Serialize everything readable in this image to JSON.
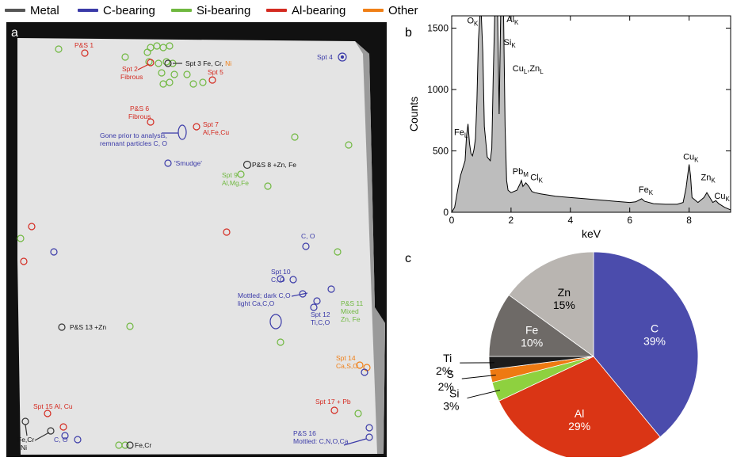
{
  "legend": [
    {
      "label": "Metal",
      "color": "#555555"
    },
    {
      "label": "C-bearing",
      "color": "#3a3aa8"
    },
    {
      "label": "Si-bearing",
      "color": "#6fb83f"
    },
    {
      "label": "Al-bearing",
      "color": "#d42a20"
    },
    {
      "label": "Other",
      "color": "#f07f16"
    }
  ],
  "panels": {
    "a": "a",
    "b": "b",
    "c": "c"
  },
  "map": {
    "labels": [
      {
        "text": "P&S 1",
        "cat": "Al"
      },
      {
        "text": "Spt 2",
        "cat": "Al"
      },
      {
        "text": "Fibrous",
        "cat": "Al"
      },
      {
        "text": "Spt 3 Fe, Cr, ",
        "cat": "Metal"
      },
      {
        "text": "Ni",
        "cat": "Other"
      },
      {
        "text": "Spt 4",
        "cat": "C"
      },
      {
        "text": "Spt 5",
        "cat": "Al"
      },
      {
        "text": "P&S 6",
        "cat": "Al"
      },
      {
        "text": "Fibrous",
        "cat": "Al"
      },
      {
        "text": "Spt 7",
        "cat": "Al"
      },
      {
        "text": "Al,Fe,Cu",
        "cat": "Al"
      },
      {
        "text": "Gone prior to analysis,",
        "cat": "C"
      },
      {
        "text": "remnant particles C, O",
        "cat": "C"
      },
      {
        "text": "P&S 8 +Zn, Fe",
        "cat": "Metal"
      },
      {
        "text": "'Smudge'",
        "cat": "C"
      },
      {
        "text": "Spt 9",
        "cat": "Si"
      },
      {
        "text": "Al,Mg,Fe",
        "cat": "Si"
      },
      {
        "text": "C, O",
        "cat": "C"
      },
      {
        "text": "Spt 10",
        "cat": "C"
      },
      {
        "text": "C, O",
        "cat": "C"
      },
      {
        "text": "Mottled; dark C,O",
        "cat": "C"
      },
      {
        "text": "light Ca,C,O",
        "cat": "C"
      },
      {
        "text": "Spt 12",
        "cat": "C"
      },
      {
        "text": "Ti,C,O",
        "cat": "C"
      },
      {
        "text": "P&S 11",
        "cat": "Si"
      },
      {
        "text": "Mixed",
        "cat": "Si"
      },
      {
        "text": "Zn, Fe",
        "cat": "Si"
      },
      {
        "text": "P&S 13 +Zn",
        "cat": "Metal"
      },
      {
        "text": "Spt 14",
        "cat": "Other"
      },
      {
        "text": "Ca,S,O",
        "cat": "Other"
      },
      {
        "text": "Spt 15  Al, Cu",
        "cat": "Al"
      },
      {
        "text": "Spt 17 + Pb",
        "cat": "Al"
      },
      {
        "text": "C, O",
        "cat": "C"
      },
      {
        "text": "Fe,Cr",
        "cat": "Metal"
      },
      {
        "text": "Ni",
        "cat": "Metal"
      },
      {
        "text": "Fe,Cr",
        "cat": "Metal"
      },
      {
        "text": "P&S 16",
        "cat": "C"
      },
      {
        "text": "Mottled: C,N,O,Ca",
        "cat": "C"
      }
    ]
  },
  "chart_data": [
    {
      "type": "area",
      "panel": "b",
      "xlabel": "keV",
      "ylabel": "Counts",
      "xlim": [
        0,
        9.4
      ],
      "ylim": [
        0,
        1600
      ],
      "xticks": [
        0,
        2,
        4,
        6,
        8
      ],
      "yticks": [
        0,
        500,
        1000,
        1500
      ],
      "spectrum": [
        [
          0,
          0
        ],
        [
          0.1,
          40
        ],
        [
          0.2,
          180
        ],
        [
          0.3,
          300
        ],
        [
          0.4,
          380
        ],
        [
          0.45,
          420
        ],
        [
          0.5,
          620
        ],
        [
          0.55,
          720
        ],
        [
          0.6,
          560
        ],
        [
          0.65,
          480
        ],
        [
          0.7,
          460
        ],
        [
          0.75,
          510
        ],
        [
          0.8,
          600
        ],
        [
          0.85,
          900
        ],
        [
          0.9,
          1400
        ],
        [
          0.95,
          1700
        ],
        [
          1.0,
          1700
        ],
        [
          1.05,
          1300
        ],
        [
          1.1,
          700
        ],
        [
          1.2,
          450
        ],
        [
          1.3,
          420
        ],
        [
          1.35,
          520
        ],
        [
          1.4,
          1100
        ],
        [
          1.45,
          1700
        ],
        [
          1.55,
          1700
        ],
        [
          1.6,
          800
        ],
        [
          1.65,
          1700
        ],
        [
          1.75,
          1700
        ],
        [
          1.8,
          700
        ],
        [
          1.85,
          260
        ],
        [
          1.9,
          180
        ],
        [
          2.0,
          160
        ],
        [
          2.1,
          170
        ],
        [
          2.2,
          180
        ],
        [
          2.3,
          230
        ],
        [
          2.35,
          260
        ],
        [
          2.4,
          210
        ],
        [
          2.5,
          240
        ],
        [
          2.6,
          210
        ],
        [
          2.7,
          170
        ],
        [
          2.8,
          160
        ],
        [
          3.0,
          150
        ],
        [
          3.5,
          130
        ],
        [
          4.0,
          120
        ],
        [
          4.5,
          110
        ],
        [
          5.0,
          100
        ],
        [
          5.5,
          90
        ],
        [
          6.0,
          80
        ],
        [
          6.2,
          85
        ],
        [
          6.4,
          110
        ],
        [
          6.5,
          90
        ],
        [
          6.8,
          70
        ],
        [
          7.2,
          65
        ],
        [
          7.6,
          65
        ],
        [
          7.8,
          80
        ],
        [
          7.9,
          200
        ],
        [
          8.0,
          390
        ],
        [
          8.05,
          300
        ],
        [
          8.1,
          120
        ],
        [
          8.3,
          80
        ],
        [
          8.5,
          120
        ],
        [
          8.6,
          160
        ],
        [
          8.65,
          140
        ],
        [
          8.8,
          80
        ],
        [
          8.9,
          95
        ],
        [
          9.0,
          70
        ],
        [
          9.2,
          40
        ],
        [
          9.4,
          20
        ]
      ],
      "annotations": [
        {
          "text": "O",
          "sub": "K",
          "x": 0.52,
          "y": 1540
        },
        {
          "text": "Al",
          "sub": "K",
          "x": 1.85,
          "y": 1550
        },
        {
          "text": "Si",
          "sub": "K",
          "x": 1.75,
          "y": 1360
        },
        {
          "text": "Cu",
          "sub": "L",
          "text2": ",Zn",
          "sub2": "L",
          "x": 2.05,
          "y": 1150
        },
        {
          "text": "Fe",
          "sub": "L",
          "x": 0.08,
          "y": 630
        },
        {
          "text": "Pb",
          "sub": "M",
          "x": 2.05,
          "y": 310
        },
        {
          "text": "Cl",
          "sub": "K",
          "x": 2.65,
          "y": 260
        },
        {
          "text": "Fe",
          "sub": "K",
          "x": 6.3,
          "y": 160
        },
        {
          "text": "Cu",
          "sub": "K",
          "x": 7.8,
          "y": 430
        },
        {
          "text": "Zn",
          "sub": "K",
          "x": 8.4,
          "y": 260
        },
        {
          "text": "Cu",
          "sub": "K",
          "x": 8.85,
          "y": 110
        }
      ]
    },
    {
      "type": "pie",
      "panel": "c",
      "slices": [
        {
          "label": "C",
          "value": 39,
          "pct": "39%",
          "color": "#4b4cac",
          "label_color": "#ffffff"
        },
        {
          "label": "Al",
          "value": 29,
          "pct": "29%",
          "color": "#da3515",
          "label_color": "#ffffff"
        },
        {
          "label": "Si",
          "value": 3,
          "pct": "3%",
          "color": "#8ed13f",
          "label_color": "#000000"
        },
        {
          "label": "S",
          "value": 2,
          "pct": "2%",
          "color": "#ee7a12",
          "label_color": "#000000"
        },
        {
          "label": "Ti",
          "value": 2,
          "pct": "2%",
          "color": "#1c1c1c",
          "label_color": "#000000"
        },
        {
          "label": "Fe",
          "value": 10,
          "pct": "10%",
          "color": "#6e6a67",
          "label_color": "#ffffff"
        },
        {
          "label": "Zn",
          "value": 15,
          "pct": "15%",
          "color": "#b9b5b1",
          "label_color": "#000000"
        }
      ]
    }
  ]
}
